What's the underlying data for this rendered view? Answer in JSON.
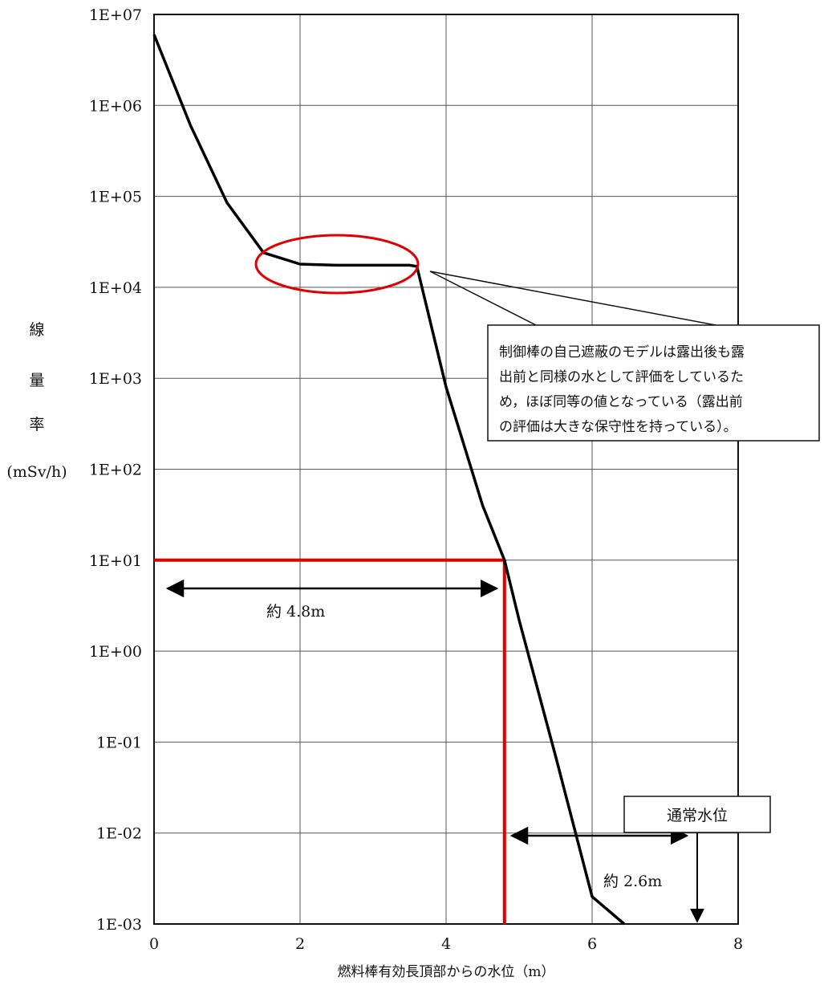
{
  "chart_data": {
    "type": "line",
    "yscale": "log",
    "xlim": [
      0,
      8
    ],
    "ylim": [
      0.001,
      10000000
    ],
    "x_ticks": [
      "0",
      "2",
      "4",
      "6",
      "8"
    ],
    "y_ticks": [
      "1E-03",
      "1E-02",
      "1E-01",
      "1E+00",
      "1E+01",
      "1E+02",
      "1E+03",
      "1E+04",
      "1E+05",
      "1E+06",
      "1E+07"
    ],
    "grid": true,
    "xlabel": "燃料棒有効長頂部からの水位（m）",
    "ylabel_chars": [
      "線",
      "量",
      "率"
    ],
    "ylabel_unit": "(mSv/h)",
    "series": [
      {
        "color": "#000000",
        "x": [
          0,
          0.5,
          1.0,
          1.5,
          2.0,
          2.5,
          3.0,
          3.5,
          3.6,
          4.0,
          4.5,
          4.8,
          5.0,
          5.5,
          6.0,
          6.44
        ],
        "y": [
          6000000,
          600000,
          85000,
          24000,
          18000,
          17500,
          17500,
          17500,
          17000,
          800,
          40,
          10,
          2.2,
          0.07,
          0.002,
          0.001
        ]
      }
    ],
    "colors": {
      "curve": "#000000",
      "highlight": "#e00000",
      "grid": "#555555"
    },
    "annotations": {
      "threshold": {
        "x": 4.8,
        "y": 10,
        "color": "#e00000"
      },
      "distance_4_8": {
        "label": "約 4.8m",
        "x_from": 0,
        "x_to": 4.8
      },
      "distance_2_6": {
        "label": "約 2.6m",
        "x_from": 4.8,
        "x_to": 7.4
      },
      "normal_water_level": {
        "label": "通常水位",
        "x": 7.5
      },
      "note_lines": [
        "制御棒の自己遮蔽のモデルは露出後も露",
        "出前と同様の水として評価をしているた",
        "め，ほぼ同等の値となっている（露出前",
        "の評価は大きな保守性を持っている）。"
      ]
    }
  }
}
